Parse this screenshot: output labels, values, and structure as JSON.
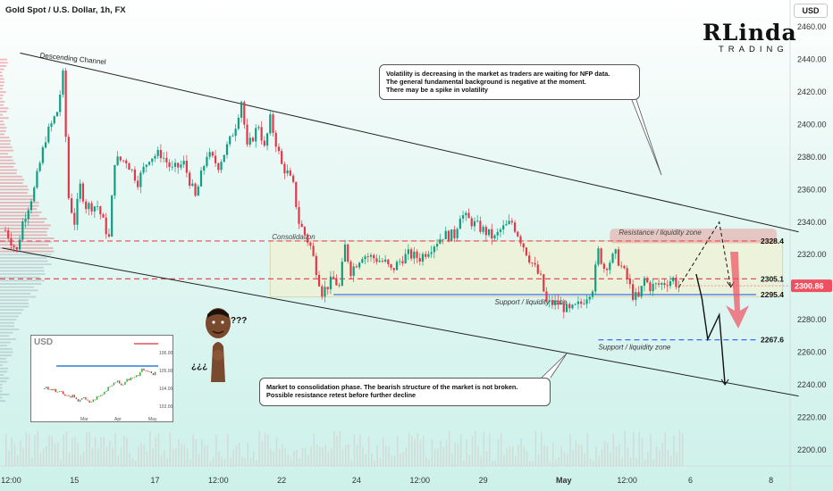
{
  "header": {
    "title": "Gold Spot / U.S. Dollar, 1h, FX"
  },
  "currency_button": "USD",
  "logo": {
    "top": "RLinda",
    "bottom": "TRADING"
  },
  "notes": {
    "top": [
      "Volatility is decreasing in the market as traders are waiting for NFP data.",
      "The general fundamental background is negative at the moment.",
      "There may be a spike in volatility"
    ],
    "bottom": [
      "Market to consolidation phase. The bearish structure of the market is not broken.",
      "Possible resistance retest before further decline"
    ]
  },
  "meme": {
    "top_marks": "???",
    "bottom_marks": "¿¿¿"
  },
  "inset": {
    "title": "USD",
    "y_labels": [
      "106.00",
      "105.00",
      "104.00",
      "103.00",
      "102.00"
    ],
    "x_labels": [
      "Mar",
      "Apr",
      "May"
    ]
  },
  "colors": {
    "up": "#0e9f82",
    "down": "#e5374a",
    "resistance": "#e44b5c",
    "support": "#3d6ff2",
    "price_tag": "#ef4f5f"
  },
  "chart_data": {
    "type": "candlestick",
    "title": "Gold Spot / U.S. Dollar, 1h, FX",
    "currency": "USD",
    "ylim": [
      2190,
      2470
    ],
    "y_ticks": [
      2200,
      2220,
      2240,
      2260,
      2280,
      2300,
      2320,
      2340,
      2360,
      2380,
      2400,
      2420,
      2440,
      2460
    ],
    "x_ticks": [
      {
        "i": 1,
        "label": "12:00"
      },
      {
        "i": 12,
        "label": "15"
      },
      {
        "i": 26,
        "label": "17"
      },
      {
        "i": 37,
        "label": "12:00"
      },
      {
        "i": 48,
        "label": "22"
      },
      {
        "i": 61,
        "label": "24"
      },
      {
        "i": 72,
        "label": "12:00"
      },
      {
        "i": 83,
        "label": "29"
      },
      {
        "i": 97,
        "label": "May"
      },
      {
        "i": 108,
        "label": "12:00"
      },
      {
        "i": 119,
        "label": "6"
      },
      {
        "i": 133,
        "label": "8"
      }
    ],
    "x_count": 136,
    "price_path": [
      [
        0,
        2335
      ],
      [
        2,
        2322
      ],
      [
        3,
        2340
      ],
      [
        5,
        2360
      ],
      [
        7,
        2392
      ],
      [
        8,
        2400
      ],
      [
        9,
        2408
      ],
      [
        10,
        2430
      ],
      [
        11,
        2355
      ],
      [
        12,
        2340
      ],
      [
        13,
        2362
      ],
      [
        14,
        2350
      ],
      [
        16,
        2350
      ],
      [
        18,
        2330
      ],
      [
        19,
        2378
      ],
      [
        21,
        2378
      ],
      [
        23,
        2365
      ],
      [
        25,
        2380
      ],
      [
        27,
        2382
      ],
      [
        29,
        2372
      ],
      [
        31,
        2376
      ],
      [
        33,
        2355
      ],
      [
        35,
        2382
      ],
      [
        37,
        2375
      ],
      [
        39,
        2390
      ],
      [
        40,
        2400
      ],
      [
        41,
        2415
      ],
      [
        42,
        2385
      ],
      [
        44,
        2400
      ],
      [
        45,
        2385
      ],
      [
        46,
        2403
      ],
      [
        48,
        2375
      ],
      [
        49,
        2370
      ],
      [
        50,
        2362
      ],
      [
        51,
        2340
      ],
      [
        53,
        2325
      ],
      [
        55,
        2297
      ],
      [
        57,
        2305
      ],
      [
        58,
        2300
      ],
      [
        59,
        2325
      ],
      [
        60,
        2310
      ],
      [
        62,
        2320
      ],
      [
        64,
        2318
      ],
      [
        66,
        2315
      ],
      [
        67,
        2310
      ],
      [
        69,
        2318
      ],
      [
        70,
        2320
      ],
      [
        72,
        2318
      ],
      [
        74,
        2325
      ],
      [
        76,
        2332
      ],
      [
        78,
        2332
      ],
      [
        79,
        2345
      ],
      [
        81,
        2340
      ],
      [
        83,
        2335
      ],
      [
        85,
        2330
      ],
      [
        86,
        2335
      ],
      [
        88,
        2340
      ],
      [
        89,
        2333
      ],
      [
        91,
        2318
      ],
      [
        93,
        2305
      ],
      [
        94,
        2290
      ],
      [
        96,
        2290
      ],
      [
        98,
        2285
      ],
      [
        100,
        2290
      ],
      [
        102,
        2300
      ],
      [
        103,
        2322
      ],
      [
        104,
        2312
      ],
      [
        106,
        2320
      ],
      [
        108,
        2305
      ],
      [
        109,
        2295
      ],
      [
        110,
        2293
      ],
      [
        111,
        2305
      ],
      [
        112,
        2300
      ],
      [
        114,
        2302
      ],
      [
        116,
        2305
      ],
      [
        117,
        2300
      ]
    ],
    "levels": [
      {
        "name": "resistance",
        "value": 2328.4,
        "label": "2328.4",
        "style": "dashed",
        "color": "#e44b5c"
      },
      {
        "name": "mid",
        "value": 2305.1,
        "label": "2305.1",
        "style": "dashed",
        "color": "#e44b5c"
      },
      {
        "name": "support",
        "value": 2295.4,
        "label": "2295.4",
        "style": "solid",
        "color": "#3d6ff2"
      },
      {
        "name": "support-2",
        "value": 2267.6,
        "label": "2267.6",
        "style": "dashed",
        "color": "#3d6ff2"
      }
    ],
    "current_price": 2300.86,
    "current_price_label": "2300.86",
    "channel": {
      "label": "Descending Channel",
      "upper": [
        [
          1,
          2444
        ],
        [
          135,
          2334
        ]
      ],
      "lower": [
        [
          1,
          2324
        ],
        [
          135,
          2233
        ]
      ]
    },
    "zones": [
      {
        "label": "Consolidation",
        "from": 46,
        "to": 135,
        "low": 2294,
        "high": 2328.4
      },
      {
        "label": "Resistance / liquidity zone",
        "from": 105,
        "to": 134,
        "low": 2327,
        "high": 2336
      },
      {
        "label": "Support / liquidity zone",
        "at": 85,
        "value": 2295.4
      },
      {
        "label": "Support / liquidity zone",
        "at": 103,
        "value": 2267.6
      }
    ],
    "scenarios": [
      {
        "name": "retest",
        "style": "dashed",
        "points": [
          [
            117,
            2300
          ],
          [
            124,
            2340
          ],
          [
            126,
            2300
          ]
        ]
      },
      {
        "name": "decline",
        "style": "solid",
        "points": [
          [
            120,
            2308
          ],
          [
            121,
            2293
          ],
          [
            122,
            2268
          ],
          [
            124,
            2283
          ],
          [
            125,
            2240
          ]
        ]
      }
    ]
  }
}
